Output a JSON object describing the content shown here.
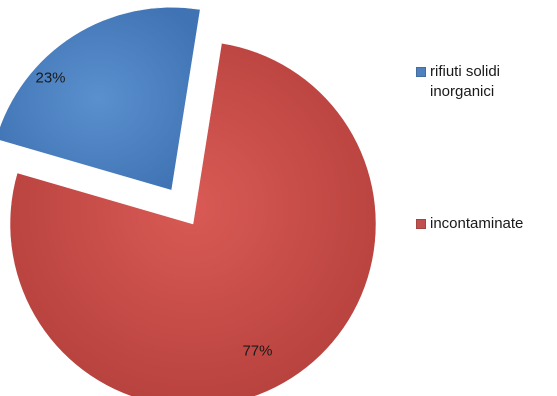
{
  "chart_data": {
    "type": "pie",
    "title": "",
    "slices": [
      {
        "label": "rifiuti solidi inorganici",
        "value": 23,
        "display": "23%",
        "color": "#4f81bd",
        "exploded": true
      },
      {
        "label": "incontaminate",
        "value": 77,
        "display": "77%",
        "color": "#c0504d",
        "exploded": false
      }
    ],
    "legend_position": "right"
  }
}
